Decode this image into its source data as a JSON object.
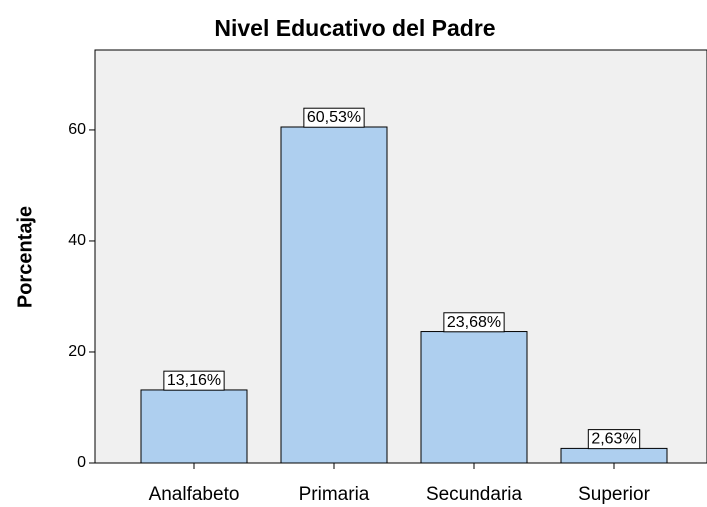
{
  "chart_data": {
    "type": "bar",
    "title": "Nivel Educativo del Padre",
    "y_label": "Porcentaje",
    "categories": [
      "Analfabeto",
      "Primaria",
      "Secundaria",
      "Superior"
    ],
    "values": [
      13.16,
      60.53,
      23.68,
      2.63
    ],
    "value_labels": [
      "13,16%",
      "60,53%",
      "23,68%",
      "2,63%"
    ],
    "color": "#aecfef",
    "ylim": [
      0,
      74.4
    ],
    "yticks": [
      0,
      20,
      40,
      60
    ]
  }
}
